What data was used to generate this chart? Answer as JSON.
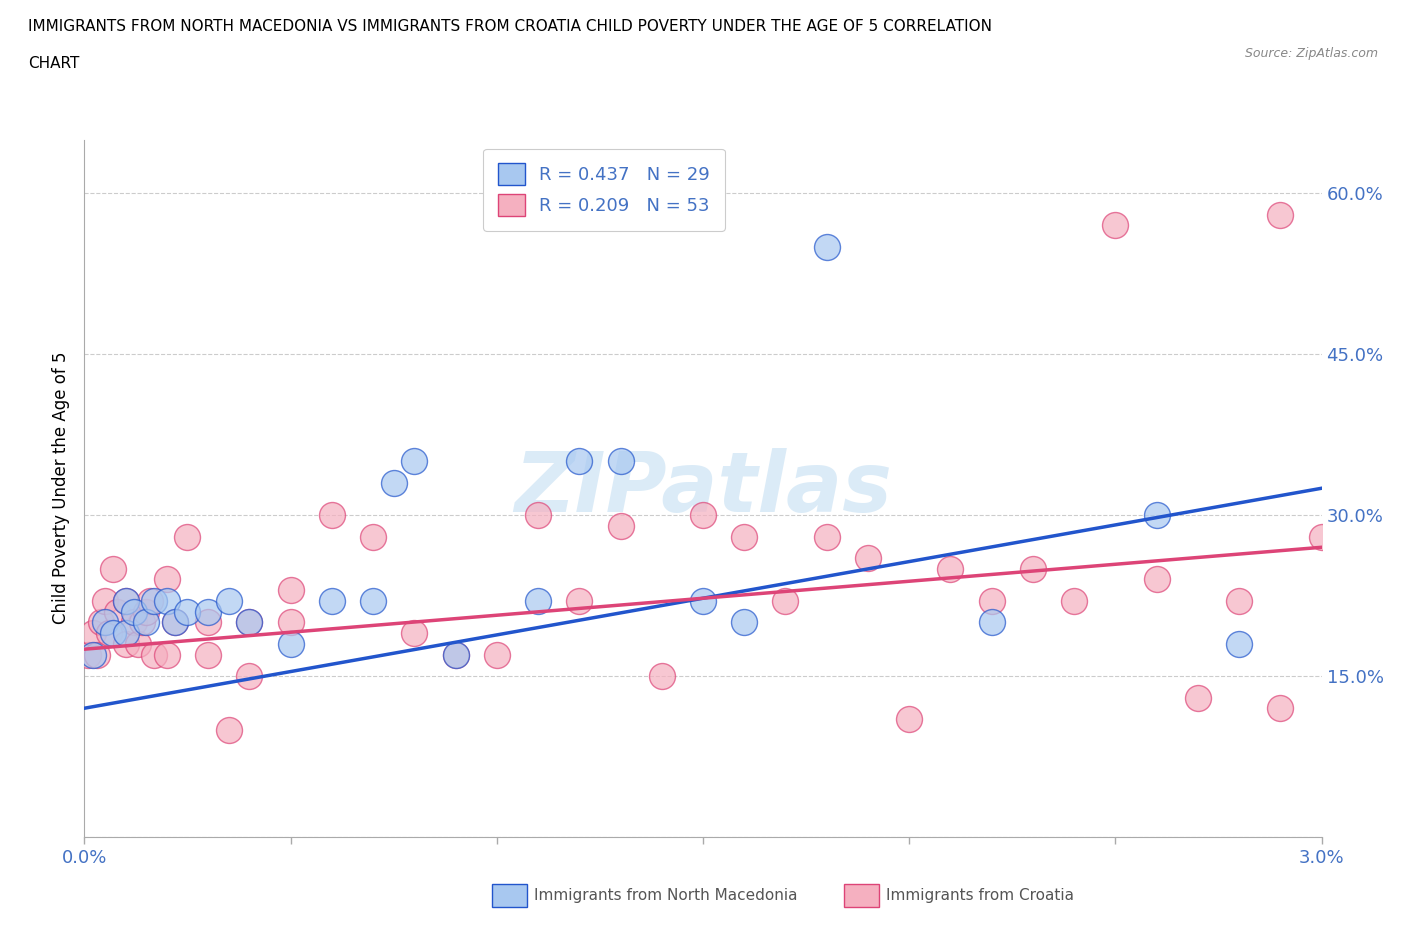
{
  "title_line1": "IMMIGRANTS FROM NORTH MACEDONIA VS IMMIGRANTS FROM CROATIA CHILD POVERTY UNDER THE AGE OF 5 CORRELATION",
  "title_line2": "CHART",
  "source": "Source: ZipAtlas.com",
  "ylabel": "Child Poverty Under the Age of 5",
  "xlim": [
    0.0,
    0.03
  ],
  "ylim": [
    0.0,
    0.65
  ],
  "xticks": [
    0.0,
    0.005,
    0.01,
    0.015,
    0.02,
    0.025,
    0.03
  ],
  "xticklabels": [
    "0.0%",
    "",
    "",
    "",
    "",
    "",
    "3.0%"
  ],
  "yticks": [
    0.0,
    0.15,
    0.3,
    0.45,
    0.6
  ],
  "yticklabels": [
    "",
    "15.0%",
    "30.0%",
    "45.0%",
    "60.0%"
  ],
  "macedonian_color": "#a8c8f0",
  "croatian_color": "#f5b0c0",
  "trend_macedonian": "#2255cc",
  "trend_croatian": "#dd4477",
  "R_macedonian": 0.437,
  "N_macedonian": 29,
  "R_croatian": 0.209,
  "N_croatian": 53,
  "watermark": "ZIPatlas",
  "macedonian_x": [
    0.0002,
    0.0005,
    0.0007,
    0.001,
    0.001,
    0.0012,
    0.0015,
    0.0017,
    0.002,
    0.0022,
    0.0025,
    0.003,
    0.0035,
    0.004,
    0.005,
    0.006,
    0.007,
    0.0075,
    0.008,
    0.009,
    0.011,
    0.012,
    0.013,
    0.015,
    0.016,
    0.018,
    0.022,
    0.026,
    0.028
  ],
  "macedonian_y": [
    0.17,
    0.2,
    0.19,
    0.22,
    0.19,
    0.21,
    0.2,
    0.22,
    0.22,
    0.2,
    0.21,
    0.21,
    0.22,
    0.2,
    0.18,
    0.22,
    0.22,
    0.33,
    0.35,
    0.17,
    0.22,
    0.35,
    0.35,
    0.22,
    0.2,
    0.55,
    0.2,
    0.3,
    0.18
  ],
  "croatian_x": [
    0.0001,
    0.0002,
    0.0003,
    0.0004,
    0.0005,
    0.0006,
    0.0007,
    0.0008,
    0.001,
    0.001,
    0.0012,
    0.0013,
    0.0014,
    0.0015,
    0.0016,
    0.0017,
    0.002,
    0.002,
    0.0022,
    0.0025,
    0.003,
    0.003,
    0.0035,
    0.004,
    0.004,
    0.005,
    0.005,
    0.006,
    0.007,
    0.008,
    0.009,
    0.01,
    0.011,
    0.012,
    0.013,
    0.014,
    0.015,
    0.016,
    0.017,
    0.018,
    0.019,
    0.02,
    0.021,
    0.022,
    0.023,
    0.024,
    0.025,
    0.026,
    0.027,
    0.028,
    0.029,
    0.029,
    0.03
  ],
  "croatian_y": [
    0.17,
    0.19,
    0.17,
    0.2,
    0.22,
    0.19,
    0.25,
    0.21,
    0.22,
    0.18,
    0.2,
    0.18,
    0.2,
    0.21,
    0.22,
    0.17,
    0.24,
    0.17,
    0.2,
    0.28,
    0.2,
    0.17,
    0.1,
    0.2,
    0.15,
    0.23,
    0.2,
    0.3,
    0.28,
    0.19,
    0.17,
    0.17,
    0.3,
    0.22,
    0.29,
    0.15,
    0.3,
    0.28,
    0.22,
    0.28,
    0.26,
    0.11,
    0.25,
    0.22,
    0.25,
    0.22,
    0.57,
    0.24,
    0.13,
    0.22,
    0.12,
    0.58,
    0.28
  ],
  "mac_trend_x0": 0.0,
  "mac_trend_y0": 0.12,
  "mac_trend_x1": 0.03,
  "mac_trend_y1": 0.325,
  "cro_trend_x0": 0.0,
  "cro_trend_y0": 0.175,
  "cro_trend_x1": 0.03,
  "cro_trend_y1": 0.27
}
